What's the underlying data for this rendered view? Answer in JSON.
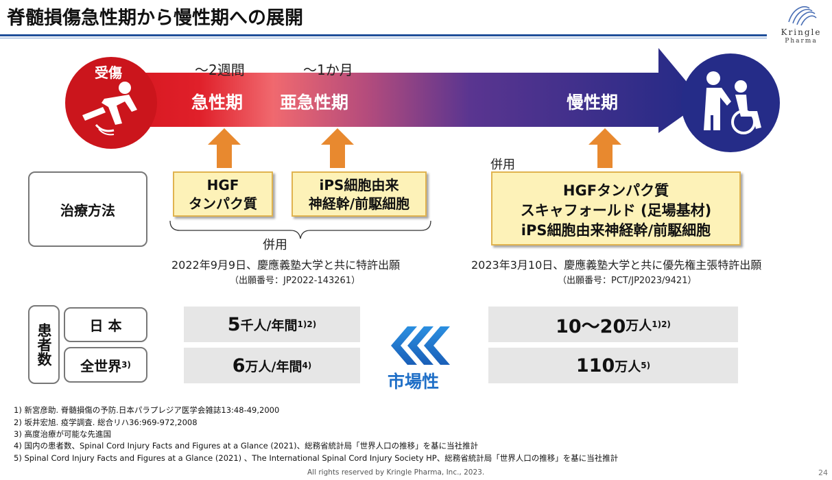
{
  "title": "脊髄損傷急性期から慢性期への展開",
  "logo": {
    "brand": "Kringle",
    "sub": "Pharma"
  },
  "timeline": {
    "injury": "受傷",
    "duration_acute": "～2週間",
    "duration_subacute": "～1か月",
    "phase_acute": "急性期",
    "phase_subacute": "亜急性期",
    "phase_chronic": "慢性期",
    "colors": {
      "start": "#c8161d",
      "end": "#232a86"
    }
  },
  "treatment": {
    "label": "治療方法",
    "acute_box": [
      "HGF",
      "タンパク質"
    ],
    "subacute_box": [
      "iPS細胞由来",
      "神経幹/前駆細胞"
    ],
    "combined_left": "併用",
    "combined_right": "併用",
    "chronic_box": [
      "HGFタンパク質",
      "スキャフォールド (足場基材)",
      "iPS細胞由来神経幹/前駆細胞"
    ],
    "patent_left": "2022年9月9日、慶應義塾大学と共に特許出願",
    "patent_left_no": "（出願番号：JP2022-143261）",
    "patent_right": "2023年3月10日、慶應義塾大学と共に優先権主張特許出願",
    "patent_right_no": "（出願番号：PCT/JP2023/9421）"
  },
  "patients": {
    "label": "患者数",
    "japan_label": "日 本",
    "world_label": "全世界",
    "world_sup": "3)",
    "acute_japan_num": "5",
    "acute_japan_unit": "千人/年間",
    "acute_japan_sup": "1)2)",
    "acute_world_num": "6",
    "acute_world_unit": "万人/年間",
    "acute_world_sup": "4)",
    "chronic_japan_num": "10～20",
    "chronic_japan_unit": "万人",
    "chronic_japan_sup": "1)2)",
    "chronic_world_num": "110",
    "chronic_world_unit": "万人",
    "chronic_world_sup": "5)",
    "market_label": "市場性"
  },
  "footnotes": [
    "1)  新宮彦助. 脊髄損傷の予防.日本パラプレジア医学会雑誌13:48-49,2000",
    "2)  坂井宏旭. 疫学調査. 総合リハ36:969-972,2008",
    "3)  高度治療が可能な先進国",
    "4)  国内の患者数、Spinal Cord Injury Facts and Figures at a Glance (2021)、総務省統計局「世界人口の推移」を基に当社推計",
    "5)  Spinal Cord Injury Facts and Figures at a Glance (2021) 、The International Spinal Cord Injury Society HP、総務省統計局「世界人口の推移」を基に当社推計"
  ],
  "copyright": "All rights reserved by Kringle Pharma, Inc., 2023.",
  "page_number": "24"
}
